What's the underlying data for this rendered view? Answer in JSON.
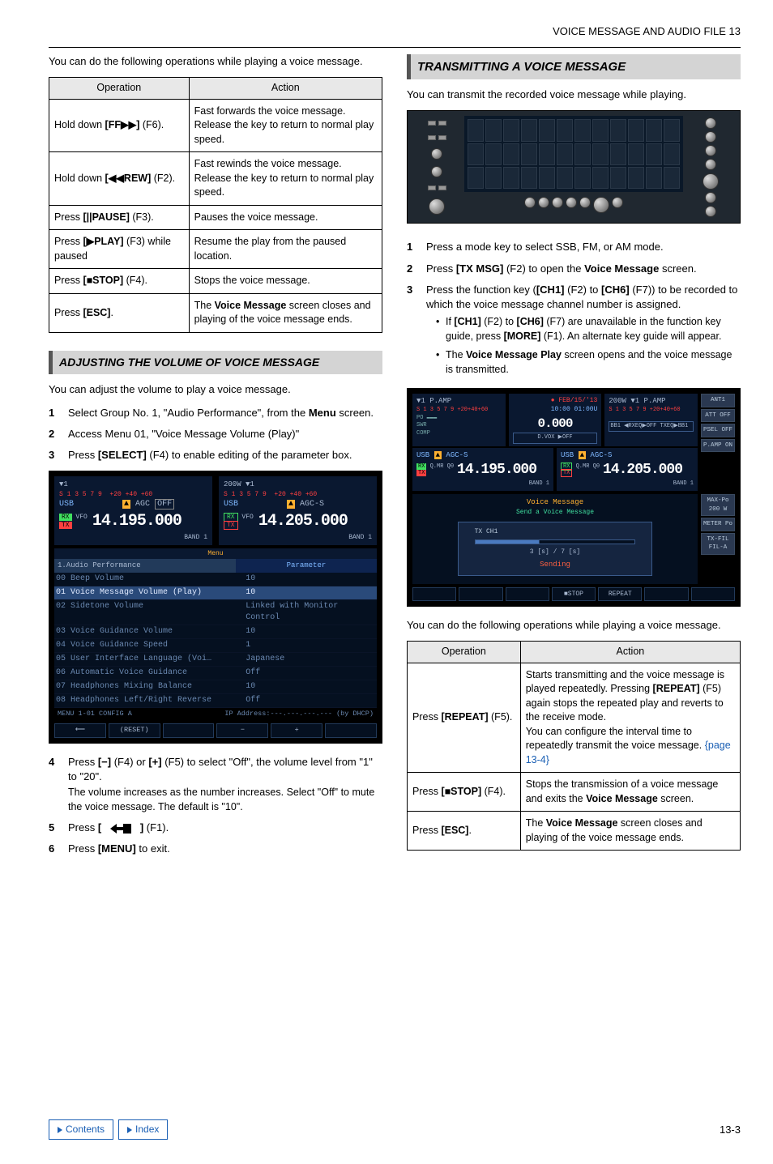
{
  "page_header": "VOICE MESSAGE AND AUDIO FILE 13",
  "page_number": "13-3",
  "left": {
    "intro1": "You can do the following operations while playing a voice message.",
    "table1": {
      "headers": [
        "Operation",
        "Action"
      ],
      "rows": [
        {
          "op": "Hold down [FF▶▶] (F6).",
          "act": "Fast forwards the voice message. Release the key to return to normal play speed."
        },
        {
          "op": "Hold down [◀◀REW] (F2).",
          "act": "Fast rewinds the voice message. Release the key to return to normal play speed."
        },
        {
          "op": "Press [||PAUSE] (F3).",
          "act": "Pauses the voice message."
        },
        {
          "op": "Press [▶PLAY] (F3) while paused",
          "act": "Resume the play from the paused location."
        },
        {
          "op": "Press [■STOP] (F4).",
          "act": "Stops the voice message."
        },
        {
          "op_html": "Press <b>[ESC]</b>.",
          "act_html": "The <b>Voice Message</b> screen closes and playing of the voice message ends."
        }
      ]
    },
    "heading1": "ADJUSTING THE VOLUME OF VOICE MESSAGE",
    "intro2": "You can adjust the volume to play a voice message.",
    "steps1": [
      {
        "n": "1",
        "body_html": "Select Group No. 1, \"Audio Performance\", from the <b>Menu</b> screen."
      },
      {
        "n": "2",
        "body_html": "Access Menu 01, \"Voice Message Volume (Play)\""
      },
      {
        "n": "3",
        "body_html": "Press <b>[SELECT]</b> (F4) to enable editing of the parameter box."
      }
    ],
    "menu_screenshot": {
      "left_panel": {
        "ant": "▼1",
        "mode_line_html": "<span style='color:#7fb8ff'>USB</span>&nbsp;&nbsp;&nbsp;&nbsp;&nbsp;&nbsp;&nbsp;&nbsp;&nbsp;&nbsp;<span style='background:#ffb030;color:#000;padding:0 2px'>▲</span> AGC <span style='border:1px solid #888;padding:0 2px'>OFF</span>",
        "rx_tx_html": "<span style='background:#40e060;color:#000;padding:0 3px'>RX</span>&nbsp;VFO<br><span style='background:#ff4040;color:#000;padding:0 3px'>TX</span>",
        "freq": "14.195.000",
        "band": "BAND 1"
      },
      "right_panel": {
        "ant": "200W   ▼1",
        "mode_line_html": "<span style='color:#7fb8ff'>USB</span>&nbsp;&nbsp;&nbsp;&nbsp;&nbsp;&nbsp;&nbsp;&nbsp;&nbsp;&nbsp;<span style='background:#ffb030;color:#000;padding:0 2px'>▲</span> AGC-S",
        "rx_tx_html": "<span style='border:1px solid #40e060;color:#40e060;padding:0 3px'>RX</span>&nbsp;VFO<br><span style='border:1px solid #ff4040;color:#ff4040;padding:0 3px'>TX</span>",
        "freq": "14.205.000",
        "band": "BAND 1"
      },
      "menu_title": "1.Audio Performance",
      "param_label": "Parameter",
      "rows": [
        {
          "idx": "00",
          "name": "Beep Volume",
          "val": "10"
        },
        {
          "idx": "01",
          "name": "Voice Message Volume (Play)",
          "val": "10",
          "sel": true
        },
        {
          "idx": "02",
          "name": "Sidetone Volume",
          "val": "Linked with Monitor Control"
        },
        {
          "idx": "03",
          "name": "Voice Guidance Volume",
          "val": "10"
        },
        {
          "idx": "04",
          "name": "Voice Guidance Speed",
          "val": "1"
        },
        {
          "idx": "05",
          "name": "User Interface Language (Voi…",
          "val": "Japanese"
        },
        {
          "idx": "06",
          "name": "Automatic Voice Guidance",
          "val": "Off"
        },
        {
          "idx": "07",
          "name": "Headphones Mixing Balance",
          "val": "10"
        },
        {
          "idx": "08",
          "name": "Headphones Left/Right Reverse",
          "val": "Off"
        }
      ],
      "status_left": "MENU 1-01      CONFIG A",
      "status_right": "IP Address:---.---.---.--- (by DHCP)",
      "foot": [
        "⟵",
        "(RESET)",
        "",
        "−",
        "+",
        ""
      ]
    },
    "steps2": [
      {
        "n": "4",
        "body_html": "Press <b>[−]</b> (F4) or <b>[+]</b> (F5) to select \"Off\", the volume level from \"1\" to \"20\".",
        "sub": "The volume increases as the number increases. Select \"Off\" to mute the voice message. The default is \"10\"."
      },
      {
        "n": "5",
        "body_html": "Press <b>[&nbsp;&nbsp;&nbsp;<span class='icon-back-inner'><svg width='26' height='12'><polygon points='0,6 8,0 8,4 16,4 16,0 26,0 26,12 16,12 16,8 8,8 8,12' fill='#000'/></svg></span>&nbsp;&nbsp;&nbsp;]</b> (F1)."
      },
      {
        "n": "6",
        "body_html": "Press <b>[MENU]</b> to exit."
      }
    ]
  },
  "right": {
    "heading": "TRANSMITTING A VOICE MESSAGE",
    "intro": "You can transmit the recorded voice message while playing.",
    "steps": [
      {
        "n": "1",
        "body_html": "Press a mode key to select SSB, FM, or AM mode."
      },
      {
        "n": "2",
        "body_html": "Press <b>[TX MSG]</b> (F2) to open the <b>Voice Message</b> screen."
      },
      {
        "n": "3",
        "body_html": "Press the function key (<b>[CH1]</b> (F2) to <b>[CH6]</b> (F7)) to be recorded to which the voice message channel number is assigned.",
        "bullets_html": [
          "If <b>[CH1]</b> (F2) to <b>[CH6]</b> (F7) are unavailable in the function key guide, press <b>[MORE]</b> (F1). An alternate key guide will appear.",
          "The <b>Voice Message Play</b> screen opens and the voice message is transmitted."
        ]
      }
    ],
    "tx_screenshot": {
      "ant_left": "▼1     P.AMP",
      "ant_right": "200W   ▼1     P.AMP",
      "date": "FEB/15/'13",
      "time": "10:00 01:00U",
      "zeros": "0.000",
      "dvox": "D.VOX ▶OFF",
      "bb": "BB1 ◀RXEQ▶OFF  TXEQ▶BB1",
      "side_l": [
        "ANT1",
        "ATT OFF",
        "PSEL OFF",
        "P.AMP ON"
      ],
      "side_r": [
        "MAX-Po 200 W",
        "METER Po",
        "TX-FIL FIL-A"
      ],
      "usb_l": "USB          ▲ AGC-S",
      "usb_r": "USB          ▲ AGC-S",
      "freq_l": "14.195.000",
      "freq_r": "14.205.000",
      "qmr_l": "Q.MR  Q0",
      "qmr_r": "Q.MR  Q0",
      "band": "BAND 1",
      "msg_head": "Voice Message",
      "msg_sub": "Send a Voice Message",
      "ch_label": "TX CH1",
      "time_line": "3 [s]  /   7 [s]",
      "sending": "Sending",
      "foot": [
        "",
        "",
        "",
        "■STOP",
        "REPEAT",
        "",
        ""
      ]
    },
    "intro2": "You can do the following operations while playing a voice message.",
    "table2": {
      "headers": [
        "Operation",
        "Action"
      ],
      "rows": [
        {
          "op_html": "Press <b>[REPEAT]</b> (F5).",
          "act_html": "Starts transmitting and the voice message is played repeatedly. Pressing <b>[REPEAT]</b> (F5) again stops the repeated play and reverts to the receive mode.<br>You can configure the interval time to repeatedly transmit the voice message. <span style='color:#1a5fb4'>{page 13-4}</span>"
        },
        {
          "op_html": "Press <b>[■STOP]</b> (F4).",
          "act_html": "Stops the transmission of a voice message and exits the <b>Voice Message</b> screen."
        },
        {
          "op_html": "Press <b>[ESC]</b>.",
          "act_html": "The <b>Voice Message</b> screen closes and playing of the voice message ends."
        }
      ]
    }
  },
  "footer": {
    "contents": "Contents",
    "index": "Index"
  }
}
